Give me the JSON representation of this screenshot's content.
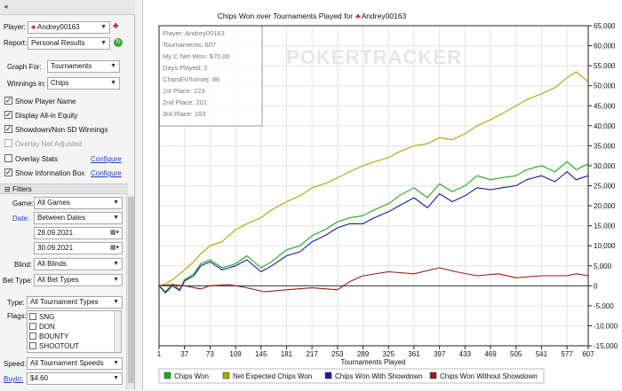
{
  "sidebar": {
    "player_label": "Player:",
    "player_value": "Andrey00163",
    "report_label": "Report:",
    "report_value": "Personal Results",
    "graph_for_label": "Graph For:",
    "graph_for_value": "Tournaments",
    "winnings_label": "Winnings in:",
    "winnings_value": "Chips",
    "options": [
      {
        "label": "Show Player Name",
        "checked": true,
        "enabled": true
      },
      {
        "label": "Display All-in Equity",
        "checked": true,
        "enabled": true
      },
      {
        "label": "Showdown/Non SD Winnings",
        "checked": true,
        "enabled": true
      },
      {
        "label": "Overlay Net Adjusted",
        "checked": false,
        "enabled": false
      },
      {
        "label": "Overlay Stats",
        "checked": false,
        "enabled": true
      },
      {
        "label": "Show Information Box",
        "checked": true,
        "enabled": true
      }
    ],
    "configure_label": "Configure"
  },
  "filters": {
    "header": "Filters",
    "game_label": "Game:",
    "game_value": "All Games",
    "date_label": "Date:",
    "date_value": "Between Dates",
    "date_from": "28.09.2021",
    "date_to": "30.09.2021",
    "blind_label": "Blind:",
    "blind_value": "All Blinds",
    "bet_type_label": "Bet Type:",
    "bet_type_value": "All Bet Types",
    "type_label": "Type:",
    "type_value": "All Tournament Types",
    "flags_label": "Flags:",
    "flags": [
      "SNG",
      "DON",
      "BOUNTY",
      "SHOOTOUT"
    ],
    "speed_label": "Speed:",
    "speed_value": "All Tournament Speeds",
    "buyin_label": "Buyin:",
    "buyin_value": "$4.60"
  },
  "chart_data": {
    "type": "line",
    "title": "Chips Won over Tournaments Played for",
    "title_player": "Andrey00163",
    "watermark": "POKERTRACKER",
    "xlabel": "Tournaments Played",
    "ylabel": "",
    "xlim": [
      1,
      607
    ],
    "ylim": [
      -15000,
      65000
    ],
    "x_ticks": [
      1,
      37,
      73,
      109,
      145,
      181,
      217,
      253,
      289,
      325,
      361,
      397,
      433,
      469,
      505,
      541,
      577,
      607
    ],
    "y_ticks": [
      -15000,
      -10000,
      -5000,
      0,
      5000,
      10000,
      15000,
      20000,
      25000,
      30000,
      35000,
      40000,
      45000,
      50000,
      55000,
      60000,
      65000
    ],
    "y_tick_labels": [
      "-15,000",
      "-10,000",
      "-5,000",
      "0",
      "5,000",
      "10,000",
      "15,000",
      "20,000",
      "25,000",
      "30,000",
      "35,000",
      "40,000",
      "45,000",
      "50,000",
      "55,000",
      "60,000",
      "65,000"
    ],
    "grid": true,
    "legend_position": "bottom",
    "info_box": [
      "Player: Andrey00163",
      "Tournaments: 607",
      "My C Net Won: $70.00",
      "Days Played: 2",
      "ChipsEV/turniej: 86",
      "1st Place: 223",
      "2nd Place: 201",
      "3rd Place: 183"
    ],
    "series": [
      {
        "name": "Chips Won",
        "color": "#1aaa1a",
        "x": [
          1,
          10,
          20,
          30,
          37,
          50,
          60,
          73,
          90,
          109,
          125,
          145,
          160,
          181,
          200,
          217,
          235,
          253,
          270,
          289,
          305,
          325,
          340,
          361,
          380,
          397,
          415,
          433,
          450,
          469,
          485,
          505,
          520,
          541,
          560,
          577,
          590,
          607
        ],
        "y": [
          0,
          -1500,
          500,
          -1000,
          1500,
          3000,
          5500,
          6500,
          4500,
          5500,
          7500,
          4500,
          6000,
          9000,
          10000,
          12500,
          14000,
          16000,
          17000,
          17500,
          19000,
          20500,
          22500,
          24500,
          22000,
          25500,
          23500,
          25000,
          27500,
          26500,
          27000,
          27500,
          29000,
          30000,
          28500,
          31000,
          29000,
          30500
        ]
      },
      {
        "name": "Net Expected Chips Won",
        "color": "#a8a800",
        "x": [
          1,
          10,
          20,
          30,
          37,
          50,
          60,
          73,
          90,
          109,
          125,
          145,
          160,
          181,
          200,
          217,
          235,
          253,
          270,
          289,
          305,
          325,
          340,
          361,
          380,
          397,
          415,
          433,
          450,
          469,
          485,
          505,
          520,
          541,
          560,
          577,
          590,
          607
        ],
        "y": [
          0,
          500,
          1500,
          3000,
          4000,
          6000,
          8000,
          10000,
          11000,
          14000,
          15500,
          17000,
          19000,
          21000,
          22500,
          24500,
          25500,
          27000,
          28500,
          30000,
          31000,
          32000,
          33500,
          35000,
          35500,
          37000,
          36500,
          38000,
          40000,
          41500,
          43000,
          45000,
          46500,
          48000,
          49500,
          52000,
          53500,
          51000
        ]
      },
      {
        "name": "Chips Won With Showdown",
        "color": "#1a1aa0",
        "x": [
          1,
          10,
          20,
          30,
          37,
          50,
          60,
          73,
          90,
          109,
          125,
          145,
          160,
          181,
          200,
          217,
          235,
          253,
          270,
          289,
          305,
          325,
          340,
          361,
          380,
          397,
          415,
          433,
          450,
          469,
          485,
          505,
          520,
          541,
          560,
          577,
          590,
          607
        ],
        "y": [
          0,
          -1800,
          0,
          -1200,
          1200,
          2500,
          5000,
          6000,
          4000,
          5000,
          6500,
          3500,
          5000,
          7500,
          8500,
          11000,
          12500,
          14500,
          15500,
          15500,
          17000,
          18500,
          20000,
          22000,
          19500,
          23000,
          21000,
          22500,
          24500,
          24000,
          24500,
          25000,
          26500,
          27500,
          26000,
          28500,
          26500,
          27500
        ]
      },
      {
        "name": "Chips Won Without Showdown",
        "color": "#a01a1a",
        "x": [
          1,
          20,
          37,
          60,
          73,
          100,
          125,
          150,
          181,
          217,
          253,
          270,
          289,
          325,
          361,
          397,
          420,
          450,
          480,
          505,
          541,
          577,
          590,
          607
        ],
        "y": [
          0,
          300,
          0,
          -800,
          0,
          300,
          -500,
          -1500,
          -1000,
          -500,
          -1000,
          1000,
          2500,
          3500,
          3000,
          4500,
          3500,
          2500,
          3000,
          2000,
          2500,
          2500,
          3000,
          2500
        ]
      }
    ]
  }
}
